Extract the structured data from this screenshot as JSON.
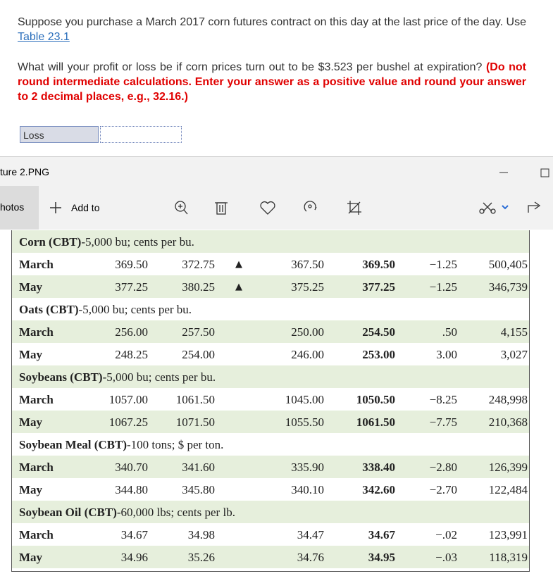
{
  "question": {
    "intro": "Suppose you purchase a March 2017 corn futures contract on this day at the last price of the day. Use ",
    "link": "Table 23.1",
    "prompt": "What will your profit or loss be if corn prices turn out to be $3.523 per bushel at expiration? ",
    "instructions": "(Do not round intermediate calculations. Enter your answer as a positive value and round your answer to 2 decimal places, e.g., 32.16.)"
  },
  "answer": {
    "selection": "Loss"
  },
  "window": {
    "title": "ture 2.PNG",
    "app": "hotos",
    "add_to": "Add to"
  },
  "table": {
    "sections": [
      {
        "name": "Corn (CBT)",
        "detail": "-5,000 bu; cents per bu.",
        "rows": [
          {
            "cells": [
              "March",
              "369.50",
              "372.75",
              "367.50",
              "369.50",
              "−1.25",
              "500,405"
            ],
            "flag": "▲"
          },
          {
            "cells": [
              "May",
              "377.25",
              "380.25",
              "375.25",
              "377.25",
              "−1.25",
              "346,739"
            ],
            "flag": "▲"
          }
        ]
      },
      {
        "name": "Oats (CBT)",
        "detail": "-5,000 bu; cents per bu.",
        "rows": [
          {
            "cells": [
              "March",
              "256.00",
              "257.50",
              "250.00",
              "254.50",
              ".50",
              "4,155"
            ]
          },
          {
            "cells": [
              "May",
              "248.25",
              "254.00",
              "246.00",
              "253.00",
              "3.00",
              "3,027"
            ]
          }
        ]
      },
      {
        "name": "Soybeans (CBT)",
        "detail": "-5,000 bu; cents per bu.",
        "rows": [
          {
            "cells": [
              "March",
              "1057.00",
              "1061.50",
              "1045.00",
              "1050.50",
              "−8.25",
              "248,998"
            ]
          },
          {
            "cells": [
              "May",
              "1067.25",
              "1071.50",
              "1055.50",
              "1061.50",
              "−7.75",
              "210,368"
            ]
          }
        ]
      },
      {
        "name": "Soybean Meal (CBT)",
        "detail": "-100 tons; $ per ton.",
        "rows": [
          {
            "cells": [
              "March",
              "340.70",
              "341.60",
              "335.90",
              "338.40",
              "−2.80",
              "126,399"
            ]
          },
          {
            "cells": [
              "May",
              "344.80",
              "345.80",
              "340.10",
              "342.60",
              "−2.70",
              "122,484"
            ]
          }
        ]
      },
      {
        "name": "Soybean Oil (CBT)",
        "detail": "-60,000 lbs; cents per lb.",
        "rows": [
          {
            "cells": [
              "March",
              "34.67",
              "34.98",
              "34.47",
              "34.67",
              "−.02",
              "123,991"
            ]
          },
          {
            "cells": [
              "May",
              "34.96",
              "35.26",
              "34.76",
              "34.95",
              "−.03",
              "118,319"
            ]
          }
        ]
      }
    ]
  }
}
